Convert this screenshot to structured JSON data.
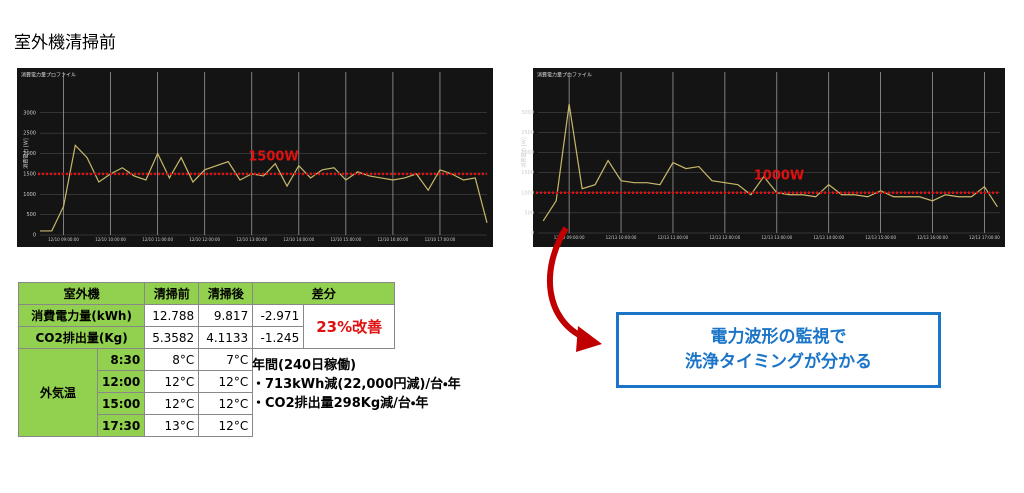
{
  "title": "室外機清掃前",
  "chart_data": [
    {
      "type": "line",
      "title": "消費電力量プロファイル",
      "y_label": "消費電力 [W]",
      "color": "#c8b86a",
      "grid": true,
      "x": [
        8.5,
        8.75,
        9,
        9.25,
        9.5,
        9.75,
        10,
        10.25,
        10.5,
        10.75,
        11,
        11.25,
        11.5,
        11.75,
        12,
        12.25,
        12.5,
        12.75,
        13,
        13.25,
        13.5,
        13.75,
        14,
        14.25,
        14.5,
        14.75,
        15,
        15.25,
        15.5,
        15.75,
        16,
        16.25,
        16.5,
        16.75,
        17,
        17.25,
        17.5,
        17.75,
        18
      ],
      "values": [
        100,
        100,
        700,
        2200,
        1900,
        1300,
        1500,
        1650,
        1450,
        1350,
        2000,
        1400,
        1900,
        1300,
        1600,
        1700,
        1800,
        1350,
        1500,
        1450,
        1750,
        1200,
        1700,
        1400,
        1600,
        1650,
        1350,
        1550,
        1450,
        1400,
        1350,
        1400,
        1500,
        1100,
        1600,
        1500,
        1350,
        1400,
        300
      ],
      "xlim": [
        8.5,
        18
      ],
      "ylim": [
        0,
        4000
      ],
      "xticks": [
        {
          "value": 9,
          "label": "12/10 09:00:00"
        },
        {
          "value": 10,
          "label": "12/10 10:00:00"
        },
        {
          "value": 11,
          "label": "12/10 11:00:00"
        },
        {
          "value": 12,
          "label": "12/10 12:00:00"
        },
        {
          "value": 13,
          "label": "12/10 13:00:00"
        },
        {
          "value": 14,
          "label": "12/10 14:00:00"
        },
        {
          "value": 15,
          "label": "12/10 15:00:00"
        },
        {
          "value": 16,
          "label": "12/10 16:00:00"
        },
        {
          "value": 17,
          "label": "12/10 17:00:00"
        }
      ],
      "yticks": [
        0,
        500,
        1000,
        1500,
        2000,
        2500,
        3000
      ],
      "reference_line": {
        "value": 1500,
        "label": "1500W",
        "color": "#e01010"
      }
    },
    {
      "type": "line",
      "title": "消費電力量プロファイル",
      "y_label": "消費電力 [W]",
      "color": "#c8b86a",
      "grid": true,
      "x": [
        8.5,
        8.75,
        9,
        9.25,
        9.5,
        9.75,
        10,
        10.25,
        10.5,
        10.75,
        11,
        11.25,
        11.5,
        11.75,
        12,
        12.25,
        12.5,
        12.75,
        13,
        13.25,
        13.5,
        13.75,
        14,
        14.25,
        14.5,
        14.75,
        15,
        15.25,
        15.5,
        15.75,
        16,
        16.25,
        16.5,
        16.75,
        17,
        17.25
      ],
      "values": [
        300,
        800,
        3200,
        1100,
        1200,
        1800,
        1300,
        1250,
        1250,
        1200,
        1750,
        1600,
        1650,
        1300,
        1250,
        1200,
        950,
        1400,
        1000,
        950,
        950,
        900,
        1200,
        950,
        950,
        900,
        1050,
        900,
        900,
        900,
        800,
        950,
        900,
        900,
        1150,
        650
      ],
      "xlim": [
        8.4,
        17.3
      ],
      "ylim": [
        0,
        4000
      ],
      "xticks": [
        {
          "value": 9,
          "label": "12/13 09:00:00"
        },
        {
          "value": 10,
          "label": "12/13 10:00:00"
        },
        {
          "value": 11,
          "label": "12/13 11:00:00"
        },
        {
          "value": 12,
          "label": "12/13 12:00:00"
        },
        {
          "value": 13,
          "label": "12/13 13:00:00"
        },
        {
          "value": 14,
          "label": "12/13 14:00:00"
        },
        {
          "value": 15,
          "label": "12/13 15:00:00"
        },
        {
          "value": 16,
          "label": "12/13 16:00:00"
        },
        {
          "value": 17,
          "label": "12/13 17:00:00"
        }
      ],
      "yticks": [
        0,
        500,
        1000,
        1500,
        2000,
        2500,
        3000
      ],
      "reference_line": {
        "value": 1000,
        "label": "1000W",
        "color": "#e01010"
      }
    }
  ],
  "table": {
    "header": [
      "室外機",
      "清掃前",
      "清掃後",
      "差分"
    ],
    "rows": [
      [
        "消費電力量(kWh)",
        "12.788",
        "9.817",
        "-2.971"
      ],
      [
        "CO2排出量(Kg)",
        "5.3582",
        "4.1133",
        "-1.245"
      ]
    ],
    "improvement": "23%改善",
    "temperature": {
      "label": "外気温",
      "rows": [
        [
          "8:30",
          "8°C",
          "7°C"
        ],
        [
          "12:00",
          "12°C",
          "12°C"
        ],
        [
          "15:00",
          "12°C",
          "12°C"
        ],
        [
          "17:30",
          "13°C",
          "12°C"
        ]
      ]
    }
  },
  "notes": [
    "年間(240日稼働)",
    "・713kWh減(22,000円減)/台・年",
    "・CO2排出量298Kg減/台・年"
  ],
  "callout": [
    "電力波形の監視で",
    "洗浄タイミングが分かる"
  ]
}
